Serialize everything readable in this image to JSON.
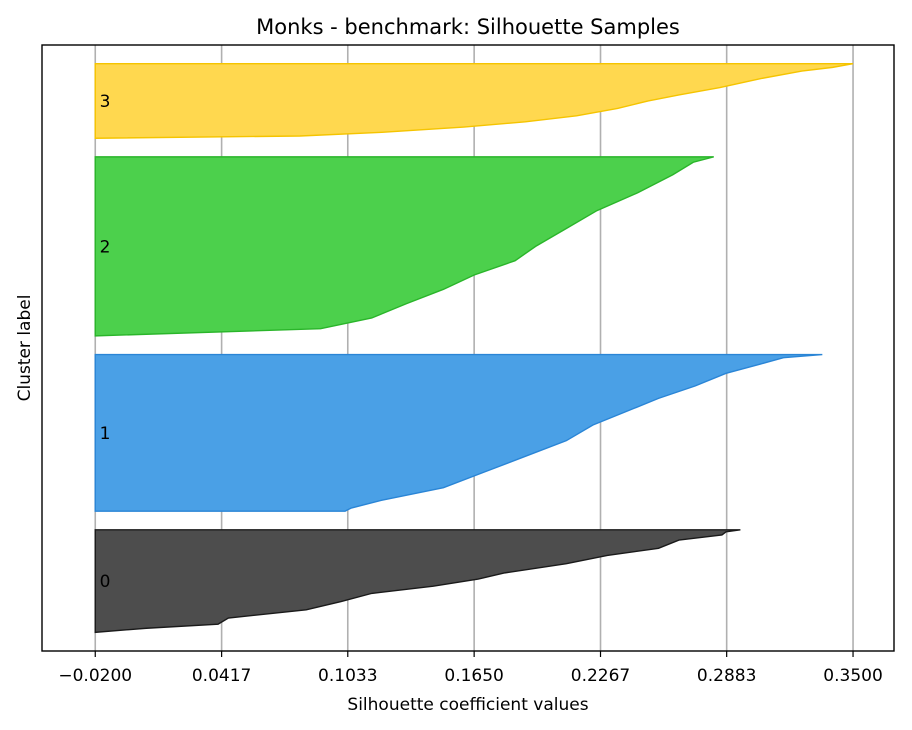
{
  "chart_data": {
    "type": "area",
    "title": "Monks - benchmark: Silhouette Samples",
    "xlabel": "Silhouette coefficient values",
    "ylabel": "Cluster label",
    "xlim": [
      -0.046,
      0.37
    ],
    "xticks": [
      "-0.0200",
      "0.0417",
      "0.1033",
      "0.1650",
      "0.2267",
      "0.2883",
      "0.3500"
    ],
    "xtick_values": [
      -0.02,
      0.0417,
      0.1033,
      0.165,
      0.2267,
      0.2883,
      0.35
    ],
    "grid": "x",
    "series": [
      {
        "label": "0",
        "color": "#4d4d4d",
        "edge": "#1a1a1a",
        "n_samples": 55,
        "profile": [
          [
            0,
            0.295
          ],
          [
            0.02,
            0.288
          ],
          [
            0.05,
            0.286
          ],
          [
            0.1,
            0.265
          ],
          [
            0.18,
            0.255
          ],
          [
            0.25,
            0.23
          ],
          [
            0.33,
            0.21
          ],
          [
            0.42,
            0.18
          ],
          [
            0.48,
            0.167
          ],
          [
            0.55,
            0.145
          ],
          [
            0.62,
            0.115
          ],
          [
            0.7,
            0.1
          ],
          [
            0.78,
            0.083
          ],
          [
            0.86,
            0.045
          ],
          [
            0.92,
            0.04
          ],
          [
            0.96,
            0.005
          ],
          [
            1.0,
            -0.02
          ]
        ]
      },
      {
        "label": "1",
        "color": "#4aa0e6",
        "edge": "#2a85d6",
        "n_samples": 84,
        "profile": [
          [
            0,
            0.335
          ],
          [
            0.02,
            0.316
          ],
          [
            0.06,
            0.305
          ],
          [
            0.12,
            0.288
          ],
          [
            0.2,
            0.273
          ],
          [
            0.28,
            0.255
          ],
          [
            0.36,
            0.24
          ],
          [
            0.45,
            0.223
          ],
          [
            0.55,
            0.21
          ],
          [
            0.65,
            0.19
          ],
          [
            0.75,
            0.17
          ],
          [
            0.85,
            0.15
          ],
          [
            0.93,
            0.12
          ],
          [
            0.98,
            0.105
          ],
          [
            1.0,
            0.102
          ]
        ]
      },
      {
        "label": "2",
        "color": "#4cd04c",
        "edge": "#2ab52a",
        "n_samples": 96,
        "profile": [
          [
            0,
            0.282
          ],
          [
            0.03,
            0.272
          ],
          [
            0.1,
            0.262
          ],
          [
            0.2,
            0.245
          ],
          [
            0.3,
            0.225
          ],
          [
            0.4,
            0.21
          ],
          [
            0.5,
            0.195
          ],
          [
            0.58,
            0.185
          ],
          [
            0.66,
            0.165
          ],
          [
            0.74,
            0.15
          ],
          [
            0.82,
            0.132
          ],
          [
            0.9,
            0.115
          ],
          [
            0.96,
            0.09
          ],
          [
            1.0,
            -0.02
          ]
        ]
      },
      {
        "label": "3",
        "color": "#ffd84f",
        "edge": "#f5c400",
        "n_samples": 40,
        "profile": [
          [
            0,
            0.35
          ],
          [
            0.05,
            0.34
          ],
          [
            0.1,
            0.325
          ],
          [
            0.2,
            0.305
          ],
          [
            0.32,
            0.285
          ],
          [
            0.42,
            0.265
          ],
          [
            0.5,
            0.25
          ],
          [
            0.6,
            0.235
          ],
          [
            0.7,
            0.215
          ],
          [
            0.78,
            0.19
          ],
          [
            0.85,
            0.16
          ],
          [
            0.92,
            0.12
          ],
          [
            0.97,
            0.08
          ],
          [
            1.0,
            -0.02
          ]
        ]
      }
    ]
  }
}
